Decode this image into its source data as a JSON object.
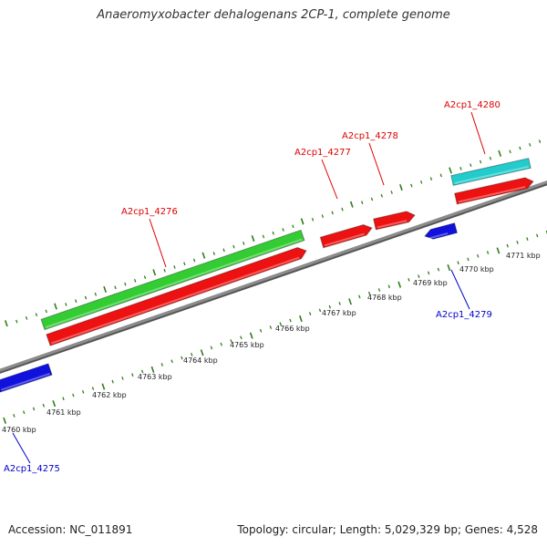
{
  "title": "Anaeromyxobacter dehalogenans 2CP-1, complete genome",
  "footer": {
    "accession": "Accession: NC_011891",
    "summary": "Topology: circular; Length: 5,029,329 bp; Genes: 4,528"
  },
  "colors": {
    "backbone": "#8c8c8c",
    "tick": "#2f7d1a",
    "forward_cds": "#ee1111",
    "reverse_cds": "#1111dd",
    "rna_forward": "#33cc33",
    "rna_reverse": "#22cccc",
    "forward_label": "#dd0000",
    "reverse_label": "#0000cc"
  },
  "scale_labels": [
    "4760 kbp",
    "4761 kbp",
    "4762 kbp",
    "4763 kbp",
    "4764 kbp",
    "4765 kbp",
    "4766 kbp",
    "4767 kbp",
    "4768 kbp",
    "4769 kbp",
    "4770 kbp",
    "4771 kbp"
  ],
  "genes": [
    {
      "name": "A2cp1_4275",
      "strand": "reverse"
    },
    {
      "name": "A2cp1_4276",
      "strand": "forward"
    },
    {
      "name": "A2cp1_4277",
      "strand": "forward"
    },
    {
      "name": "A2cp1_4278",
      "strand": "forward"
    },
    {
      "name": "A2cp1_4279",
      "strand": "reverse"
    },
    {
      "name": "A2cp1_4280",
      "strand": "forward"
    }
  ]
}
